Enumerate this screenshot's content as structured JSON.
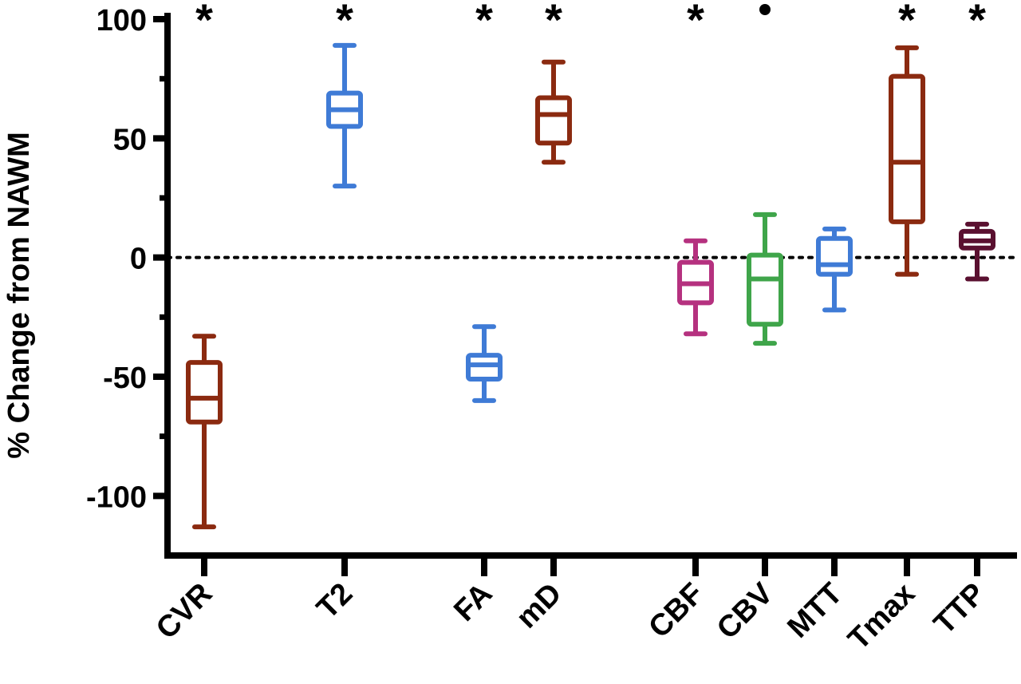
{
  "chart_data": {
    "type": "box",
    "title": "",
    "xlabel": "",
    "ylabel": "% Change from NAWM",
    "ylim": [
      -125,
      100
    ],
    "yticks": [
      100,
      50,
      0,
      -50,
      -100
    ],
    "ytick_labels": [
      "100",
      "50",
      "0",
      "-50",
      "-100"
    ],
    "reference_line": {
      "y": 0,
      "style": "dotted"
    },
    "categories": [
      "CVR",
      "T2",
      "FA",
      "mD",
      "CBF",
      "CBV",
      "MTT",
      "Tmax",
      "TTP"
    ],
    "series": [
      {
        "category": "CVR",
        "min": -113,
        "q1": -69,
        "median": -59,
        "q3": -44,
        "max": -33,
        "color": "#8B2A10",
        "marker": "*"
      },
      {
        "category": "T2",
        "min": 30,
        "q1": 55,
        "median": 62,
        "q3": 69,
        "max": 89,
        "color": "#3F7BD6",
        "marker": "*"
      },
      {
        "category": "FA",
        "min": -60,
        "q1": -51,
        "median": -45,
        "q3": -41,
        "max": -29,
        "color": "#3F7BD6",
        "marker": "*"
      },
      {
        "category": "mD",
        "min": 40,
        "q1": 48,
        "median": 60,
        "q3": 67,
        "max": 82,
        "color": "#8B2A10",
        "marker": "*"
      },
      {
        "category": "CBF",
        "min": -32,
        "q1": -19,
        "median": -11,
        "q3": -2,
        "max": 7,
        "color": "#B5317F",
        "marker": "*"
      },
      {
        "category": "CBV",
        "min": -36,
        "q1": -28,
        "median": -9,
        "q3": 1,
        "max": 18,
        "color": "#3FA54A",
        "marker": "•"
      },
      {
        "category": "MTT",
        "min": -22,
        "q1": -7,
        "median": -3,
        "q3": 8,
        "max": 12,
        "color": "#3F7BD6",
        "marker": ""
      },
      {
        "category": "Tmax",
        "min": -7,
        "q1": 15,
        "median": 40,
        "q3": 76,
        "max": 88,
        "color": "#8B2A10",
        "marker": "*"
      },
      {
        "category": "TTP",
        "min": -9,
        "q1": 4,
        "median": 7,
        "q3": 11,
        "max": 14,
        "color": "#5A1030",
        "marker": "*"
      }
    ]
  }
}
